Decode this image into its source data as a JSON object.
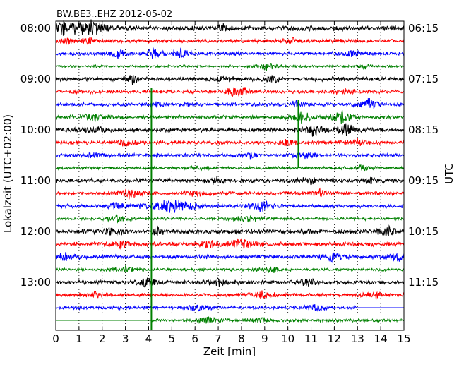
{
  "chart_data": {
    "type": "line",
    "title": "BW.BE3..EHZ 2012-05-02",
    "xlabel": "Zeit  [min]",
    "ylabel_left": "Lokalzeit (UTC+02:00)",
    "ylabel_right": "UTC",
    "xlim": [
      0,
      15
    ],
    "x_ticks": [
      "0",
      "1",
      "2",
      "3",
      "4",
      "5",
      "6",
      "7",
      "8",
      "9",
      "10",
      "11",
      "12",
      "13",
      "14",
      "15"
    ],
    "left_tick_labels": [
      "08:00",
      "09:00",
      "10:00",
      "11:00",
      "12:00",
      "13:00"
    ],
    "right_tick_labels": [
      "06:15",
      "07:15",
      "08:15",
      "09:15",
      "10:15",
      "11:15"
    ],
    "grid": "vertical dotted, every minute",
    "colors": [
      "#000000",
      "#ff0000",
      "#0000ff",
      "#008000"
    ],
    "traces": [
      {
        "color": "#000000",
        "amp": 0.3,
        "events": [
          [
            0.4,
            0.6,
            0.9
          ],
          [
            1.6,
            0.5,
            1.0
          ],
          [
            7.2,
            0.15,
            0.6
          ]
        ]
      },
      {
        "color": "#ff0000",
        "amp": 0.22,
        "events": [
          [
            0.5,
            0.3,
            0.5
          ],
          [
            1.5,
            0.3,
            0.5
          ],
          [
            10.2,
            0.3,
            0.4
          ]
        ]
      },
      {
        "color": "#0000ff",
        "amp": 0.22,
        "events": [
          [
            2.7,
            0.2,
            0.9
          ],
          [
            4.2,
            0.2,
            0.8
          ],
          [
            5.4,
            0.3,
            0.6
          ],
          [
            12.8,
            0.3,
            0.5
          ]
        ]
      },
      {
        "color": "#008000",
        "amp": 0.15,
        "events": [
          [
            9.1,
            0.3,
            0.6
          ],
          [
            13.3,
            0.2,
            0.5
          ]
        ]
      },
      {
        "color": "#000000",
        "amp": 0.25,
        "events": [
          [
            3.3,
            0.2,
            0.7
          ],
          [
            7.3,
            0.3,
            0.5
          ],
          [
            9.4,
            0.2,
            0.6
          ]
        ]
      },
      {
        "color": "#ff0000",
        "amp": 0.22,
        "events": [
          [
            7.6,
            0.3,
            0.5
          ],
          [
            8.2,
            0.2,
            0.6
          ],
          [
            12.6,
            0.3,
            0.5
          ]
        ]
      },
      {
        "color": "#0000ff",
        "amp": 0.22,
        "events": [
          [
            13.5,
            0.25,
            1.0
          ],
          [
            4.4,
            0.2,
            0.5
          ],
          [
            10.3,
            0.3,
            0.5
          ]
        ]
      },
      {
        "color": "#008000",
        "amp": 0.2,
        "events": [
          [
            1.6,
            0.4,
            0.6
          ],
          [
            10.6,
            0.3,
            1.0
          ],
          [
            12.3,
            0.3,
            1.0
          ]
        ]
      },
      {
        "color": "#000000",
        "amp": 0.25,
        "events": [
          [
            1.7,
            0.3,
            0.5
          ],
          [
            11.1,
            0.3,
            0.9
          ],
          [
            12.5,
            0.3,
            0.9
          ]
        ]
      },
      {
        "color": "#ff0000",
        "amp": 0.22,
        "events": [
          [
            3.0,
            0.3,
            0.5
          ],
          [
            13.0,
            0.3,
            0.5
          ],
          [
            10.0,
            0.2,
            0.6
          ]
        ]
      },
      {
        "color": "#0000ff",
        "amp": 0.22,
        "events": [
          [
            1.5,
            0.3,
            0.4
          ],
          [
            10.7,
            0.3,
            0.5
          ],
          [
            8.4,
            0.2,
            0.4
          ]
        ]
      },
      {
        "color": "#008000",
        "amp": 0.16,
        "events": [
          [
            13.2,
            0.4,
            0.4
          ],
          [
            6.1,
            0.3,
            0.3
          ]
        ]
      },
      {
        "color": "#000000",
        "amp": 0.25,
        "events": [
          [
            6.9,
            0.3,
            0.5
          ],
          [
            11.0,
            0.3,
            0.5
          ],
          [
            13.6,
            0.2,
            0.5
          ]
        ]
      },
      {
        "color": "#ff0000",
        "amp": 0.22,
        "events": [
          [
            3.2,
            0.4,
            0.7
          ],
          [
            11.4,
            0.3,
            0.6
          ],
          [
            6.0,
            0.3,
            0.4
          ]
        ]
      },
      {
        "color": "#0000ff",
        "amp": 0.22,
        "events": [
          [
            5.0,
            0.8,
            1.0
          ],
          [
            8.9,
            0.3,
            1.0
          ],
          [
            2.5,
            0.3,
            0.5
          ]
        ]
      },
      {
        "color": "#008000",
        "amp": 0.18,
        "events": [
          [
            2.6,
            0.3,
            0.5
          ],
          [
            8.3,
            0.4,
            0.5
          ]
        ]
      },
      {
        "color": "#000000",
        "amp": 0.28,
        "events": [
          [
            2.5,
            0.3,
            0.9
          ],
          [
            14.3,
            0.3,
            0.6
          ],
          [
            4.4,
            0.2,
            0.5
          ]
        ]
      },
      {
        "color": "#ff0000",
        "amp": 0.25,
        "events": [
          [
            8.0,
            0.35,
            1.0
          ],
          [
            6.6,
            0.3,
            0.6
          ],
          [
            2.8,
            0.3,
            0.5
          ]
        ]
      },
      {
        "color": "#0000ff",
        "amp": 0.25,
        "events": [
          [
            0.4,
            0.3,
            0.6
          ],
          [
            11.9,
            0.3,
            0.6
          ],
          [
            14.8,
            0.3,
            0.6
          ]
        ]
      },
      {
        "color": "#008000",
        "amp": 0.18,
        "events": [
          [
            9.3,
            0.3,
            0.5
          ],
          [
            3.0,
            0.3,
            0.4
          ]
        ]
      },
      {
        "color": "#000000",
        "amp": 0.25,
        "events": [
          [
            3.9,
            0.3,
            0.6
          ],
          [
            7.0,
            0.3,
            0.6
          ],
          [
            10.9,
            0.3,
            0.5
          ]
        ]
      },
      {
        "color": "#ff0000",
        "amp": 0.22,
        "events": [
          [
            1.7,
            0.3,
            0.5
          ],
          [
            8.9,
            0.3,
            0.5
          ],
          [
            13.8,
            0.3,
            0.5
          ]
        ]
      },
      {
        "color": "#0000ff",
        "amp": 0.2,
        "events": [
          [
            6.1,
            0.3,
            0.5
          ],
          [
            11.2,
            0.3,
            0.5
          ]
        ],
        "end": 13.0
      },
      {
        "color": "#008000",
        "amp": 0.18,
        "events": [
          [
            6.6,
            0.3,
            0.6
          ],
          [
            8.9,
            0.3,
            0.5
          ]
        ],
        "start": 4.1
      }
    ],
    "markers": [
      {
        "x": 4.12,
        "row_from": 5,
        "row_to": 24,
        "color": "#008000"
      },
      {
        "x": 10.45,
        "row_from": 6,
        "row_to": 11,
        "color": "#008000"
      }
    ]
  }
}
